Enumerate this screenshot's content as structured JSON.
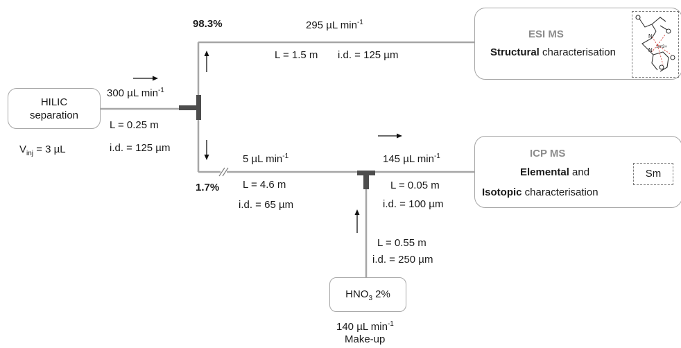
{
  "hilic": {
    "line1": "HILIC",
    "line2": "separation"
  },
  "vinj": {
    "prefix": "V",
    "sub": "inj",
    "suffix": " = 3 µL"
  },
  "inlet": {
    "flow": "300 µL min",
    "flow_sup": "-1",
    "length": "L = 0.25 m",
    "id": "i.d. = 125 µm"
  },
  "split_top": {
    "percent": "98.3%",
    "flow": "295 µL min",
    "flow_sup": "-1",
    "length": "L = 1.5 m",
    "id": "i.d. = 125 µm"
  },
  "split_bottom": {
    "percent": "1.7%",
    "flow": "5 µL min",
    "flow_sup": "-1",
    "length": "L = 4.6 m",
    "id": "i.d. = 65 µm"
  },
  "icp_line": {
    "flow": "145 µL min",
    "flow_sup": "-1",
    "length": "L = 0.05 m",
    "id": "i.d. = 100 µm"
  },
  "makeup_line": {
    "length": "L = 0.55 m",
    "id": "i.d. = 250 µm"
  },
  "hno3": {
    "prefix": "HNO",
    "sub": "3",
    "suffix": " 2%",
    "flow": "140 µL min",
    "flow_sup": "-1",
    "caption": "Make-up"
  },
  "esi": {
    "title": "ESI MS",
    "bold_word": "Structural",
    "rest": " characterisation",
    "molecule_label": "Sm3+"
  },
  "icp": {
    "title": "ICP MS",
    "bold1": "Elemental",
    "rest1": " and",
    "bold2": "Isotopic",
    "rest2": " characterisation",
    "element": "Sm"
  },
  "colors": {
    "wire": "#a6a6a6",
    "tee": "#4d4d4d",
    "box_border": "#a6a6a6",
    "title_gray": "#8c8c8c",
    "molecule_red": "#d9534f"
  }
}
